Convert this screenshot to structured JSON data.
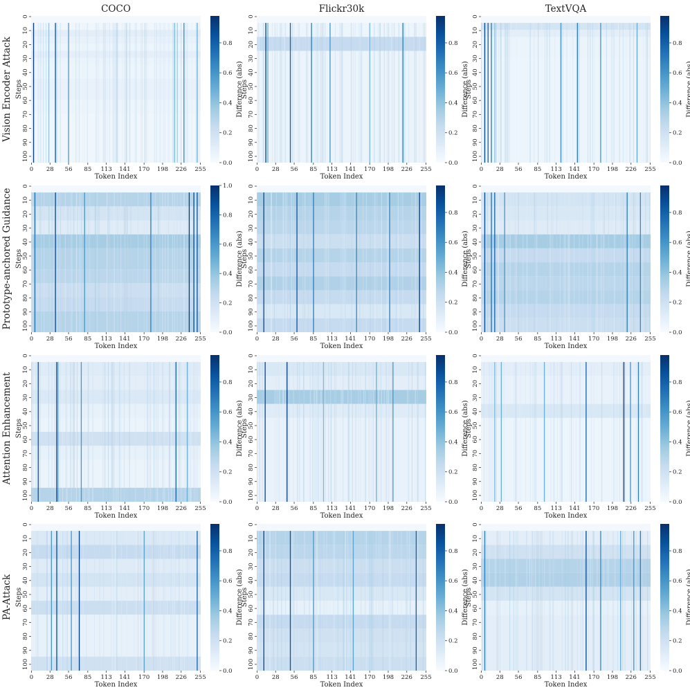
{
  "chart_data": {
    "type": "heatmap",
    "column_titles": [
      "COCO",
      "Flickr30k",
      "TextVQA"
    ],
    "row_titles": [
      "Vision Encoder Attack",
      "Prototype-anchored Guidance",
      "Attention Enhancement",
      "PA-Attack"
    ],
    "xlabel": "Token Index",
    "ylabel": "Steps",
    "colorbar_label": "Difference (abs)",
    "x_ticks": [
      "0",
      "28",
      "56",
      "85",
      "113",
      "141",
      "170",
      "198",
      "226",
      "255"
    ],
    "y_ticks": [
      "0",
      "10",
      "20",
      "30",
      "40",
      "50",
      "60",
      "70",
      "80",
      "90",
      "100"
    ],
    "x_range": [
      0,
      255
    ],
    "y_range": [
      0,
      104
    ],
    "colorbar_ticks": [
      [
        "0.0",
        "0.2",
        "0.4",
        "0.6",
        "0.8"
      ],
      [
        "0.0",
        "0.2",
        "0.4",
        "0.6",
        "0.8"
      ],
      [
        "0.0",
        "0.2",
        "0.4",
        "0.6",
        "0.8"
      ],
      [
        "0.0",
        "0.2",
        "0.4",
        "0.6",
        "0.8",
        "1.0"
      ],
      [
        "0.0",
        "0.2",
        "0.4",
        "0.6",
        "0.8"
      ],
      [
        "0.0",
        "0.2",
        "0.4",
        "0.6",
        "0.8"
      ],
      [
        "0.0",
        "0.2",
        "0.4",
        "0.6",
        "0.8"
      ],
      [
        "0.0",
        "0.2",
        "0.4",
        "0.6",
        "0.8"
      ],
      [
        "0.0",
        "0.2",
        "0.4",
        "0.6",
        "0.8"
      ],
      [
        "0.0",
        "0.2",
        "0.4",
        "0.6",
        "0.8"
      ],
      [
        "0.0",
        "0.2",
        "0.4",
        "0.6",
        "0.8"
      ],
      [
        "0.0",
        "0.2",
        "0.4",
        "0.6",
        "0.8"
      ]
    ],
    "colorbar_max": [
      0.98,
      0.98,
      0.98,
      1.0,
      0.98,
      0.98,
      0.98,
      0.98,
      0.98,
      0.98,
      0.98,
      0.98
    ],
    "colormap": "Blues",
    "colors": {
      "low": "#f7fbff",
      "mid": "#6baed6",
      "high": "#08306b"
    },
    "panels": [
      {
        "row": 0,
        "col": 0,
        "bands": [
          [
            5,
            9,
            0.04
          ],
          [
            10,
            14,
            0.1
          ],
          [
            15,
            19,
            0.07
          ],
          [
            20,
            24,
            0.05
          ],
          [
            25,
            29,
            0.09
          ],
          [
            30,
            34,
            0.06
          ],
          [
            35,
            44,
            0.05
          ],
          [
            45,
            59,
            0.07
          ],
          [
            60,
            69,
            0.05
          ],
          [
            70,
            104,
            0.04
          ]
        ],
        "strong_columns": [
          [
            3,
            0.95
          ],
          [
            36,
            0.85
          ],
          [
            56,
            0.55
          ],
          [
            26,
            0.4
          ],
          [
            216,
            0.45
          ],
          [
            220,
            0.35
          ],
          [
            250,
            0.5
          ],
          [
            230,
            0.65
          ]
        ]
      },
      {
        "row": 0,
        "col": 1,
        "bands": [
          [
            5,
            14,
            0.05
          ],
          [
            15,
            24,
            0.25
          ],
          [
            25,
            104,
            0.06
          ]
        ],
        "strong_columns": [
          [
            13,
            0.95
          ],
          [
            50,
            0.8
          ],
          [
            16,
            0.5
          ],
          [
            110,
            0.6
          ],
          [
            170,
            0.45
          ],
          [
            220,
            0.7
          ],
          [
            82,
            0.7
          ]
        ]
      },
      {
        "row": 0,
        "col": 2,
        "bands": [
          [
            5,
            9,
            0.18
          ],
          [
            10,
            14,
            0.1
          ],
          [
            15,
            29,
            0.06
          ],
          [
            30,
            104,
            0.05
          ]
        ],
        "strong_columns": [
          [
            5,
            0.9
          ],
          [
            10,
            0.8
          ],
          [
            15,
            0.7
          ],
          [
            145,
            0.7
          ],
          [
            120,
            0.6
          ],
          [
            180,
            0.6
          ],
          [
            235,
            0.5
          ],
          [
            20,
            0.4
          ]
        ]
      },
      {
        "row": 1,
        "col": 0,
        "bands": [
          [
            5,
            14,
            0.3
          ],
          [
            15,
            24,
            0.18
          ],
          [
            25,
            34,
            0.12
          ],
          [
            35,
            44,
            0.35
          ],
          [
            45,
            59,
            0.3
          ],
          [
            60,
            69,
            0.28
          ],
          [
            70,
            79,
            0.22
          ],
          [
            80,
            89,
            0.25
          ],
          [
            90,
            104,
            0.3
          ]
        ],
        "strong_columns": [
          [
            5,
            0.8
          ],
          [
            36,
            0.9
          ],
          [
            238,
            0.95
          ],
          [
            245,
            0.9
          ],
          [
            250,
            0.85
          ],
          [
            180,
            0.7
          ],
          [
            80,
            0.6
          ]
        ]
      },
      {
        "row": 1,
        "col": 1,
        "bands": [
          [
            5,
            14,
            0.35
          ],
          [
            15,
            24,
            0.3
          ],
          [
            25,
            34,
            0.28
          ],
          [
            35,
            44,
            0.22
          ],
          [
            45,
            54,
            0.3
          ],
          [
            55,
            64,
            0.25
          ],
          [
            65,
            74,
            0.32
          ],
          [
            75,
            84,
            0.25
          ],
          [
            85,
            94,
            0.15
          ],
          [
            95,
            104,
            0.25
          ]
        ],
        "strong_columns": [
          [
            10,
            0.9
          ],
          [
            60,
            0.85
          ],
          [
            245,
            0.95
          ],
          [
            85,
            0.7
          ],
          [
            200,
            0.7
          ],
          [
            150,
            0.65
          ]
        ]
      },
      {
        "row": 1,
        "col": 2,
        "bands": [
          [
            5,
            14,
            0.18
          ],
          [
            15,
            24,
            0.15
          ],
          [
            25,
            34,
            0.12
          ],
          [
            35,
            44,
            0.35
          ],
          [
            45,
            54,
            0.25
          ],
          [
            55,
            64,
            0.3
          ],
          [
            65,
            74,
            0.28
          ],
          [
            75,
            84,
            0.3
          ],
          [
            85,
            94,
            0.25
          ],
          [
            95,
            104,
            0.22
          ]
        ],
        "strong_columns": [
          [
            5,
            0.9
          ],
          [
            20,
            0.8
          ],
          [
            15,
            0.75
          ],
          [
            35,
            0.6
          ],
          [
            220,
            0.7
          ],
          [
            240,
            0.65
          ]
        ]
      },
      {
        "row": 2,
        "col": 0,
        "bands": [
          [
            5,
            14,
            0.12
          ],
          [
            15,
            24,
            0.1
          ],
          [
            25,
            34,
            0.14
          ],
          [
            35,
            44,
            0.08
          ],
          [
            45,
            54,
            0.06
          ],
          [
            55,
            64,
            0.2
          ],
          [
            65,
            74,
            0.08
          ],
          [
            75,
            94,
            0.06
          ],
          [
            95,
            104,
            0.3
          ]
        ],
        "strong_columns": [
          [
            10,
            0.85
          ],
          [
            38,
            0.95
          ],
          [
            218,
            0.8
          ],
          [
            75,
            0.6
          ],
          [
            40,
            0.5
          ],
          [
            235,
            0.5
          ]
        ]
      },
      {
        "row": 2,
        "col": 1,
        "bands": [
          [
            5,
            14,
            0.15
          ],
          [
            15,
            24,
            0.1
          ],
          [
            25,
            34,
            0.35
          ],
          [
            35,
            44,
            0.12
          ],
          [
            45,
            104,
            0.07
          ]
        ],
        "strong_columns": [
          [
            12,
            0.9
          ],
          [
            45,
            0.95
          ],
          [
            205,
            0.6
          ],
          [
            180,
            0.5
          ],
          [
            100,
            0.45
          ]
        ]
      },
      {
        "row": 2,
        "col": 2,
        "bands": [
          [
            5,
            14,
            0.1
          ],
          [
            15,
            34,
            0.07
          ],
          [
            35,
            44,
            0.15
          ],
          [
            45,
            104,
            0.05
          ]
        ],
        "strong_columns": [
          [
            158,
            0.8
          ],
          [
            215,
            0.95
          ],
          [
            30,
            0.5
          ],
          [
            20,
            0.45
          ],
          [
            237,
            0.7
          ],
          [
            95,
            0.5
          ],
          [
            225,
            0.6
          ]
        ]
      },
      {
        "row": 3,
        "col": 0,
        "bands": [
          [
            5,
            14,
            0.14
          ],
          [
            15,
            24,
            0.25
          ],
          [
            25,
            34,
            0.12
          ],
          [
            35,
            44,
            0.18
          ],
          [
            45,
            54,
            0.1
          ],
          [
            55,
            64,
            0.22
          ],
          [
            65,
            94,
            0.08
          ],
          [
            95,
            104,
            0.2
          ]
        ],
        "strong_columns": [
          [
            38,
            0.9
          ],
          [
            72,
            0.95
          ],
          [
            60,
            0.6
          ],
          [
            30,
            0.6
          ],
          [
            250,
            0.8
          ],
          [
            170,
            0.55
          ]
        ]
      },
      {
        "row": 3,
        "col": 1,
        "bands": [
          [
            5,
            14,
            0.3
          ],
          [
            15,
            24,
            0.28
          ],
          [
            25,
            34,
            0.22
          ],
          [
            35,
            44,
            0.25
          ],
          [
            45,
            54,
            0.15
          ],
          [
            55,
            64,
            0.08
          ],
          [
            65,
            74,
            0.25
          ],
          [
            75,
            84,
            0.2
          ],
          [
            85,
            94,
            0.18
          ],
          [
            95,
            104,
            0.22
          ]
        ],
        "strong_columns": [
          [
            10,
            0.9
          ],
          [
            50,
            0.85
          ],
          [
            240,
            0.8
          ],
          [
            85,
            0.6
          ],
          [
            145,
            0.55
          ]
        ]
      },
      {
        "row": 3,
        "col": 2,
        "bands": [
          [
            5,
            14,
            0.1
          ],
          [
            15,
            24,
            0.2
          ],
          [
            25,
            34,
            0.3
          ],
          [
            35,
            44,
            0.32
          ],
          [
            45,
            54,
            0.18
          ],
          [
            55,
            64,
            0.08
          ],
          [
            65,
            104,
            0.1
          ]
        ],
        "strong_columns": [
          [
            158,
            0.9
          ],
          [
            5,
            0.7
          ],
          [
            240,
            0.7
          ],
          [
            230,
            0.6
          ],
          [
            180,
            0.65
          ],
          [
            210,
            0.5
          ]
        ]
      }
    ]
  }
}
